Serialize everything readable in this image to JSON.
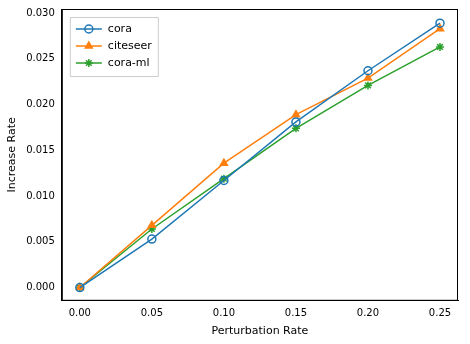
{
  "chart_data": {
    "type": "line",
    "x_label": "Perturbation Rate",
    "y_label": "Increase Rate",
    "x": [
      0,
      0.05,
      0.1,
      0.15,
      0.2,
      0.25
    ],
    "series": [
      {
        "name": "cora",
        "color": "#1f77b4",
        "marker": "circle",
        "values": [
          0,
          0.0053,
          0.0117,
          0.0181,
          0.0237,
          0.0289
        ]
      },
      {
        "name": "citeseer",
        "color": "#ff7f0e",
        "marker": "triangle",
        "values": [
          0,
          0.0068,
          0.0136,
          0.0189,
          0.0229,
          0.0283
        ]
      },
      {
        "name": "cora-ml",
        "color": "#2ca02c",
        "marker": "star",
        "values": [
          0,
          0.0064,
          0.0119,
          0.0174,
          0.0221,
          0.0263
        ]
      }
    ],
    "xlim": [
      -0.0125,
      0.2625
    ],
    "ylim": [
      -0.00145,
      0.03045
    ],
    "xticks": [
      {
        "value": 0,
        "label": "0.00"
      },
      {
        "value": 0.05,
        "label": "0.05"
      },
      {
        "value": 0.1,
        "label": "0.10"
      },
      {
        "value": 0.15,
        "label": "0.15"
      },
      {
        "value": 0.2,
        "label": "0.20"
      },
      {
        "value": 0.25,
        "label": "0.25"
      }
    ],
    "yticks": [
      {
        "value": 0,
        "label": "0.000"
      },
      {
        "value": 0.005,
        "label": "0.005"
      },
      {
        "value": 0.01,
        "label": "0.010"
      },
      {
        "value": 0.015,
        "label": "0.015"
      },
      {
        "value": 0.02,
        "label": "0.020"
      },
      {
        "value": 0.025,
        "label": "0.025"
      },
      {
        "value": 0.03,
        "label": "0.030"
      }
    ],
    "grid": false,
    "legend": "upper left"
  }
}
